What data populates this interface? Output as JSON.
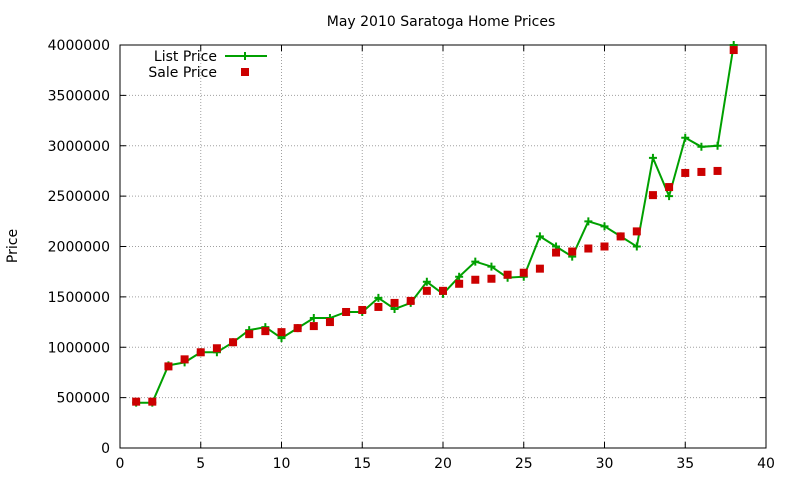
{
  "chart_data": {
    "type": "line",
    "title": "May 2010 Saratoga Home Prices",
    "xlabel": "",
    "ylabel": "Price",
    "xlim": [
      0,
      40
    ],
    "ylim": [
      0,
      4000000
    ],
    "x_ticks": [
      "0",
      "5",
      "10",
      "15",
      "20",
      "25",
      "30",
      "35",
      "40"
    ],
    "y_ticks": [
      "0",
      "500000",
      "1000000",
      "1500000",
      "2000000",
      "2500000",
      "3000000",
      "3500000",
      "4000000"
    ],
    "grid": true,
    "legend_position": "top-left",
    "x": [
      1,
      2,
      3,
      4,
      5,
      6,
      7,
      8,
      9,
      10,
      11,
      12,
      13,
      14,
      15,
      16,
      17,
      18,
      19,
      20,
      21,
      22,
      23,
      24,
      25,
      26,
      27,
      28,
      29,
      30,
      31,
      32,
      33,
      34,
      35,
      36,
      37,
      38
    ],
    "series": [
      {
        "name": "List Price",
        "style": "line with + markers",
        "color": "#00a000",
        "values": [
          450000,
          450000,
          820000,
          850000,
          950000,
          950000,
          1050000,
          1170000,
          1200000,
          1090000,
          1190000,
          1290000,
          1290000,
          1350000,
          1350000,
          1490000,
          1380000,
          1440000,
          1650000,
          1530000,
          1700000,
          1850000,
          1800000,
          1690000,
          1700000,
          2100000,
          2000000,
          1900000,
          2250000,
          2200000,
          2100000,
          2000000,
          2880000,
          2500000,
          3080000,
          2990000,
          3000000,
          4000000
        ]
      },
      {
        "name": "Sale Price",
        "style": "square markers",
        "color": "#cc0000",
        "values": [
          460000,
          460000,
          810000,
          880000,
          950000,
          990000,
          1050000,
          1130000,
          1160000,
          1150000,
          1190000,
          1210000,
          1250000,
          1350000,
          1370000,
          1400000,
          1440000,
          1460000,
          1560000,
          1560000,
          1630000,
          1670000,
          1680000,
          1720000,
          1740000,
          1780000,
          1940000,
          1950000,
          1980000,
          2000000,
          2100000,
          2150000,
          2510000,
          2590000,
          2730000,
          2740000,
          2750000,
          3950000
        ]
      }
    ]
  }
}
